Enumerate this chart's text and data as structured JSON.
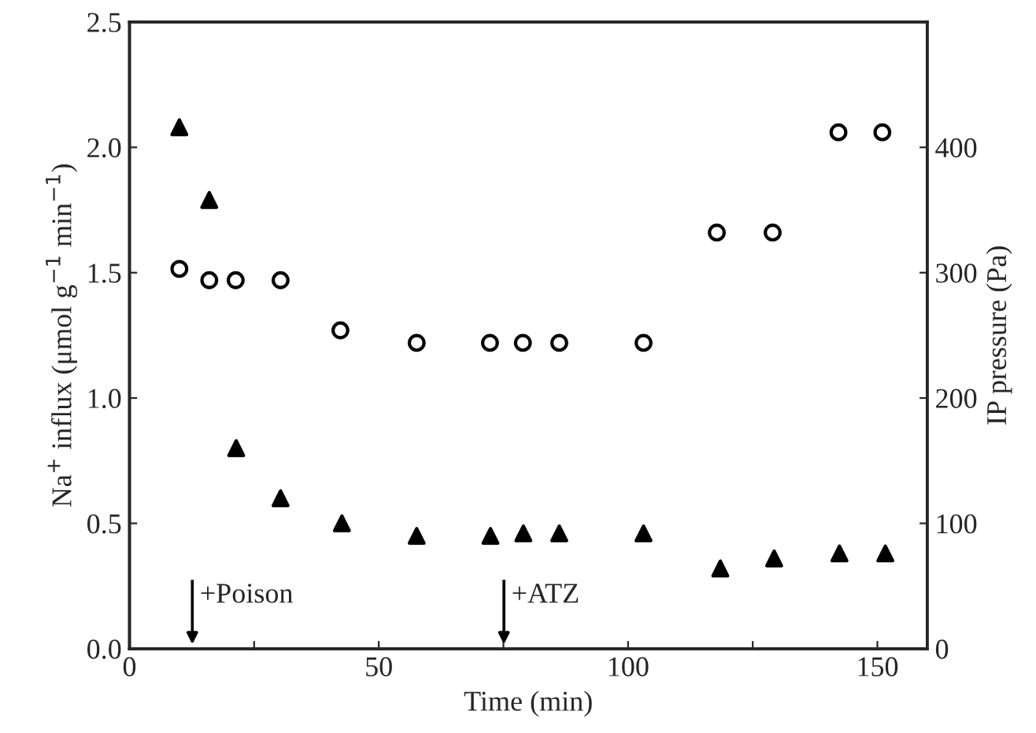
{
  "chart_data": {
    "type": "scatter",
    "xlabel": "Time (min)",
    "ylabel": "Na$^{+}$ influx (μmol g$^{−1}$ min$^{−1}$)",
    "y2label": "IP pressure (Pa)",
    "series": [
      {
        "color": "#000000",
        "marker": "triangle",
        "x": [
          10.0,
          16.0,
          21.4,
          30.3,
          42.6,
          57.6,
          72.4,
          79.0,
          86.2,
          103.1,
          118.5,
          129.3,
          142.4,
          151.6
        ],
        "values": [
          2.08,
          1.79,
          0.8,
          0.6,
          0.5,
          0.45,
          0.45,
          0.46,
          0.46,
          0.46,
          0.32,
          0.36,
          0.38,
          0.38
        ]
      },
      {
        "color": "#000000",
        "marker": "circle",
        "axis": "y2",
        "x": [
          10.0,
          16.0,
          21.3,
          30.3,
          42.3,
          57.6,
          72.3,
          78.9,
          86.2,
          103.1,
          117.8,
          129.0,
          142.2,
          151.0
        ],
        "values": [
          303,
          294,
          294,
          294,
          254,
          244,
          244,
          244,
          244,
          244,
          332,
          332,
          412,
          412
        ]
      }
    ],
    "xlim": [
      0,
      160
    ],
    "xticks": [
      0,
      {
        "value": 25,
        "label": null
      },
      50,
      {
        "value": 75,
        "label": null
      },
      100,
      {
        "value": 125,
        "label": null
      },
      150
    ],
    "ylim": [
      0,
      2.5
    ],
    "yticks": [
      {
        "value": 0,
        "label": "0.0"
      },
      0.5,
      {
        "value": 1,
        "label": "1.0"
      },
      1.5,
      {
        "value": 2,
        "label": "2.0"
      },
      2.5
    ],
    "y2lim": [
      0,
      500
    ],
    "y2ticks": [
      0,
      100,
      200,
      300,
      400
    ],
    "ref_lines": [
      {
        "axis": "x",
        "value": 12.6,
        "label": "+Poison"
      },
      {
        "axis": "x",
        "value": 75.1,
        "label": "+ATZ"
      }
    ],
    "grid": false,
    "legend": false
  }
}
